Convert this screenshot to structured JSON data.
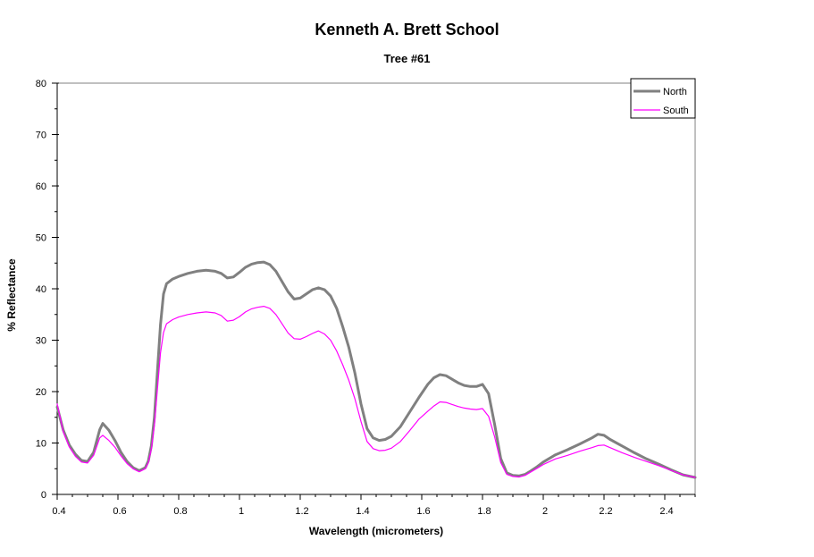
{
  "chart_data": {
    "type": "line",
    "title": "Kenneth A. Brett School",
    "subtitle": "Tree #61",
    "xlabel": "Wavelength (micrometers)",
    "ylabel": "% Reflectance",
    "xlim": [
      0.4,
      2.5
    ],
    "ylim": [
      0,
      80
    ],
    "grid": false,
    "x_major_ticks": [
      0.4,
      0.6,
      0.8,
      1.0,
      1.2,
      1.4,
      1.6,
      1.8,
      2.0,
      2.2,
      2.4
    ],
    "x_tick_labels": [
      "0.4",
      "0.6",
      "0.8",
      "1",
      "1.2",
      "1.4",
      "1.6",
      "1.8",
      "2",
      "2.2",
      "2.4"
    ],
    "x_minor_step": 0.05,
    "y_major_ticks": [
      0,
      10,
      20,
      30,
      40,
      50,
      60,
      70,
      80
    ],
    "y_tick_labels": [
      "0",
      "10",
      "20",
      "30",
      "40",
      "50",
      "60",
      "70",
      "80"
    ],
    "y_minor_step": 5,
    "legend": {
      "position": "top-right",
      "entries": [
        "North",
        "South"
      ]
    },
    "colors": {
      "north": "#808080",
      "south": "#FF00FF",
      "axis": "#000000",
      "plot_border": "#808080",
      "background": "#FFFFFF"
    },
    "x": [
      0.4,
      0.42,
      0.44,
      0.46,
      0.48,
      0.5,
      0.52,
      0.54,
      0.55,
      0.57,
      0.59,
      0.61,
      0.63,
      0.65,
      0.67,
      0.69,
      0.7,
      0.71,
      0.72,
      0.73,
      0.74,
      0.75,
      0.76,
      0.78,
      0.8,
      0.83,
      0.86,
      0.89,
      0.92,
      0.94,
      0.96,
      0.98,
      1.0,
      1.02,
      1.04,
      1.06,
      1.08,
      1.1,
      1.12,
      1.14,
      1.16,
      1.18,
      1.2,
      1.22,
      1.24,
      1.26,
      1.28,
      1.3,
      1.32,
      1.34,
      1.36,
      1.38,
      1.4,
      1.42,
      1.44,
      1.46,
      1.48,
      1.5,
      1.53,
      1.56,
      1.59,
      1.62,
      1.64,
      1.66,
      1.68,
      1.7,
      1.72,
      1.74,
      1.76,
      1.78,
      1.8,
      1.82,
      1.84,
      1.86,
      1.88,
      1.9,
      1.92,
      1.94,
      1.96,
      1.98,
      2.0,
      2.04,
      2.08,
      2.12,
      2.16,
      2.18,
      2.2,
      2.22,
      2.26,
      2.3,
      2.34,
      2.38,
      2.42,
      2.46,
      2.5
    ],
    "series": [
      {
        "name": "North",
        "color": "#808080",
        "stroke_width": 3,
        "values": [
          17.0,
          12.5,
          9.6,
          7.8,
          6.6,
          6.4,
          8.2,
          12.6,
          13.8,
          12.5,
          10.5,
          8.2,
          6.4,
          5.2,
          4.6,
          5.2,
          6.5,
          9.5,
          15.0,
          24.0,
          33.0,
          39.0,
          41.0,
          41.9,
          42.4,
          43.0,
          43.4,
          43.6,
          43.4,
          43.0,
          42.1,
          42.3,
          43.2,
          44.2,
          44.8,
          45.1,
          45.2,
          44.7,
          43.4,
          41.4,
          39.4,
          38.0,
          38.2,
          39.0,
          39.8,
          40.2,
          39.8,
          38.6,
          36.2,
          32.6,
          28.6,
          23.6,
          17.6,
          12.8,
          11.0,
          10.5,
          10.7,
          11.3,
          13.2,
          16.0,
          18.8,
          21.4,
          22.7,
          23.3,
          23.1,
          22.4,
          21.7,
          21.2,
          21.0,
          21.0,
          21.4,
          19.6,
          13.6,
          7.0,
          4.2,
          3.7,
          3.6,
          3.9,
          4.6,
          5.4,
          6.3,
          7.7,
          8.7,
          9.8,
          11.0,
          11.7,
          11.5,
          10.7,
          9.4,
          8.1,
          6.9,
          5.9,
          4.8,
          3.8,
          3.3
        ]
      },
      {
        "name": "South",
        "color": "#FF00FF",
        "stroke_width": 1.2,
        "values": [
          17.6,
          12.2,
          9.2,
          7.4,
          6.3,
          6.1,
          7.6,
          11.0,
          11.5,
          10.5,
          9.2,
          7.5,
          6.0,
          5.0,
          4.4,
          5.0,
          6.2,
          8.8,
          13.5,
          20.5,
          27.5,
          31.5,
          33.2,
          34.0,
          34.5,
          35.0,
          35.3,
          35.5,
          35.3,
          34.8,
          33.7,
          33.9,
          34.6,
          35.5,
          36.1,
          36.4,
          36.6,
          36.2,
          35.0,
          33.2,
          31.4,
          30.3,
          30.2,
          30.7,
          31.3,
          31.8,
          31.2,
          30.0,
          27.9,
          25.2,
          22.2,
          18.6,
          14.2,
          10.3,
          8.9,
          8.5,
          8.6,
          9.0,
          10.3,
          12.4,
          14.6,
          16.2,
          17.2,
          18.0,
          17.9,
          17.5,
          17.1,
          16.8,
          16.6,
          16.5,
          16.7,
          15.2,
          11.2,
          6.2,
          3.9,
          3.5,
          3.4,
          3.7,
          4.4,
          5.1,
          5.8,
          6.9,
          7.6,
          8.4,
          9.1,
          9.5,
          9.6,
          9.1,
          8.1,
          7.2,
          6.4,
          5.6,
          4.7,
          3.8,
          3.3
        ]
      }
    ]
  }
}
